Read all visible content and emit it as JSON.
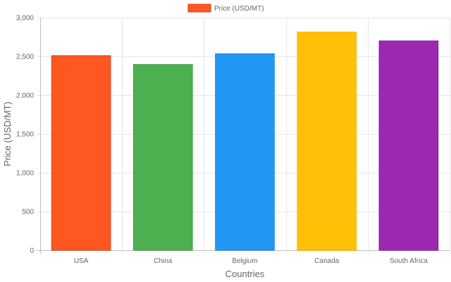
{
  "chart_data": {
    "type": "bar",
    "legend": {
      "label": "Price (USD/MT)",
      "placement": "top",
      "color": "#FF5722"
    },
    "categories": [
      "USA",
      "China",
      "Belgium",
      "Canada",
      "South Africa"
    ],
    "series": [
      {
        "name": "Price (USD/MT)",
        "values": [
          2510,
          2395,
          2535,
          2815,
          2700
        ],
        "colors": [
          "#FF5722",
          "#4CAF50",
          "#2196F3",
          "#FFC107",
          "#9C27B0"
        ],
        "border_colors": [
          "#D84315",
          "#43A047",
          "#1E88E5",
          "#FFB300",
          "#7B1FA2"
        ]
      }
    ],
    "xlabel": "Countries",
    "ylabel": "Price (USD/MT)",
    "ylim": [
      0,
      3000
    ],
    "yticks": [
      "0",
      "500",
      "1,000",
      "1,500",
      "2,000",
      "2,500",
      "3,000"
    ],
    "ytick_values": [
      0,
      500,
      1000,
      1500,
      2000,
      2500,
      3000
    ],
    "grid": true
  }
}
